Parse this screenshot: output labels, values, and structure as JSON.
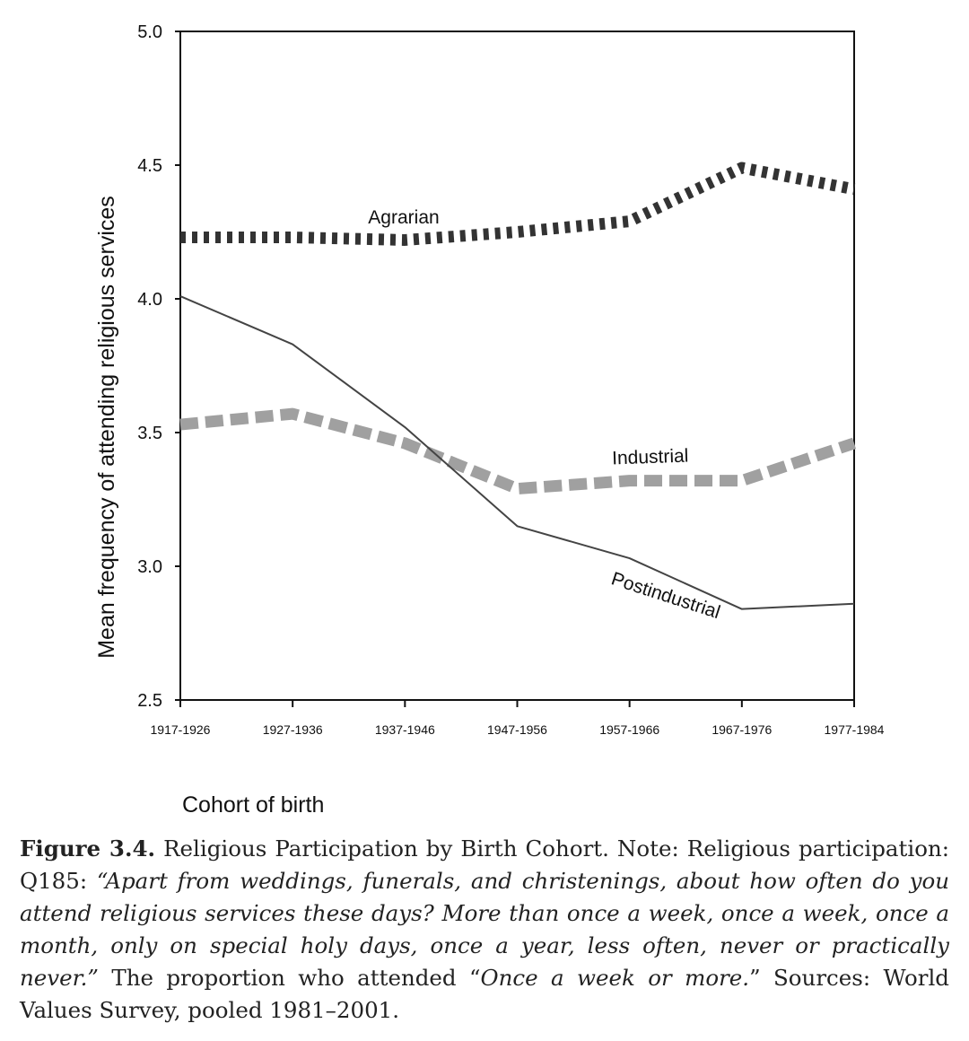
{
  "chart_data": {
    "type": "line",
    "ylabel": "Mean frequency of attending religious services",
    "xlabel": "Cohort of birth",
    "categories": [
      "1917-1926",
      "1927-1936",
      "1937-1946",
      "1947-1956",
      "1957-1966",
      "1967-1976",
      "1977-1984"
    ],
    "ylim": [
      2.5,
      5.0
    ],
    "yticks": [
      "2.5",
      "3.0",
      "3.5",
      "4.0",
      "4.5",
      "5.0"
    ],
    "grid": false,
    "legend": "inline labels",
    "series": [
      {
        "name": "Agrarian",
        "values": [
          4.23,
          4.23,
          4.22,
          4.25,
          4.29,
          4.49,
          4.41
        ],
        "color": "#333333",
        "style": "thick-dotted"
      },
      {
        "name": "Industrial",
        "values": [
          3.53,
          3.57,
          3.46,
          3.29,
          3.32,
          3.32,
          3.46
        ],
        "color": "#a0a0a0",
        "style": "thick-dashed"
      },
      {
        "name": "Postindustrial",
        "values": [
          4.01,
          3.83,
          3.52,
          3.15,
          3.03,
          2.84,
          2.86
        ],
        "color": "#444444",
        "style": "thin-solid"
      }
    ]
  },
  "caption": {
    "figure_label": "Figure 3.4.",
    "title": " Religious Participation by Birth Cohort. Note: Religious participation: Q185: ",
    "question_quote": "“Apart from weddings, funerals, and christenings, about how often do you attend religious services these days? More than once a week, once a week, once a month, only on special holy days, once a year, less often, never or practically never.”",
    "mid_text": " The proportion who attended “",
    "answer_quote": "Once a week or more.",
    "end_text": "” Sources: World Values Survey, pooled 1981–2001."
  }
}
